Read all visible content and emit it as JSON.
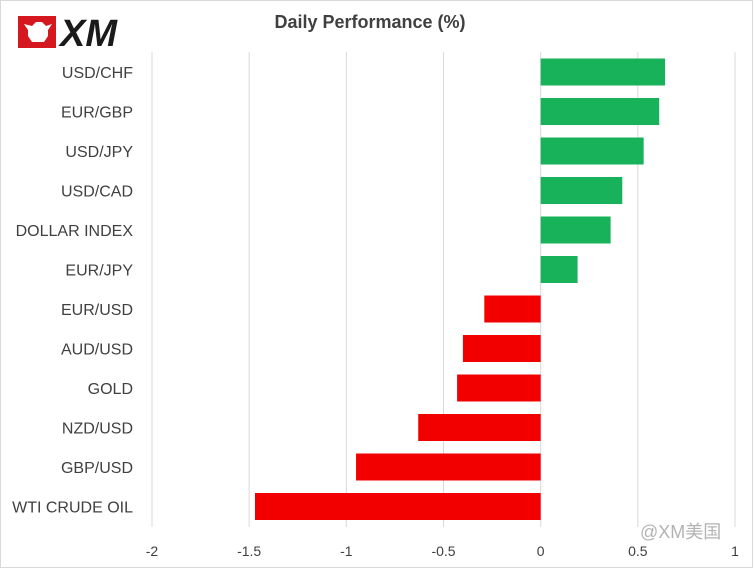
{
  "logo": {
    "text": "XM",
    "icon": "xm-bull-logo-icon",
    "brand_color": "#d51820"
  },
  "watermark": "@XM美国",
  "colors": {
    "positive": "#17b25a",
    "negative": "#f20000",
    "grid": "#d9d9d9",
    "text": "#404040"
  },
  "chart_data": {
    "type": "bar",
    "orientation": "horizontal",
    "title": "Daily Performance (%)",
    "categories": [
      "USD/CHF",
      "EUR/GBP",
      "USD/JPY",
      "USD/CAD",
      "DOLLAR INDEX",
      "EUR/JPY",
      "EUR/USD",
      "AUD/USD",
      "GOLD",
      "NZD/USD",
      "GBP/USD",
      "WTI CRUDE OIL"
    ],
    "values": [
      0.64,
      0.61,
      0.53,
      0.42,
      0.36,
      0.19,
      -0.29,
      -0.4,
      -0.43,
      -0.63,
      -0.95,
      -1.47
    ],
    "xlim": [
      -2,
      1
    ],
    "xticks": [
      "-2",
      "-1.5",
      "-1",
      "-0.5",
      "0",
      "0.5",
      "1"
    ],
    "xtick_values": [
      -2,
      -1.5,
      -1,
      -0.5,
      0,
      0.5,
      1
    ],
    "grid": "vertical",
    "legend": "none"
  }
}
